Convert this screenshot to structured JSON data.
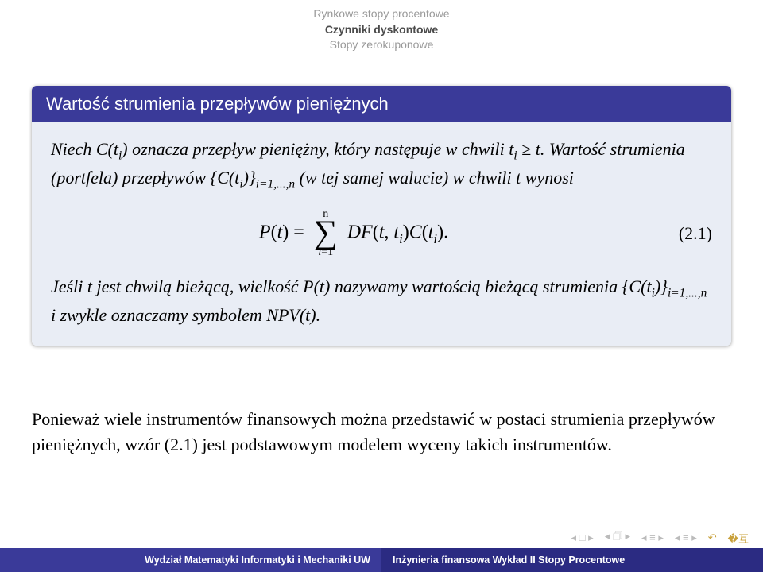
{
  "nav": {
    "line1": "Rynkowe stopy procentowe",
    "line2": "Czynniki dyskontowe",
    "line3": "Stopy zerokuponowe"
  },
  "block": {
    "title": "Wartość strumienia przepływów pieniężnych",
    "intro_html": "Niech <i>C</i>(<i>t<sub>i</sub></i>) oznacza przepływ pieniężny, który następuje w chwili <i>t<sub>i</sub></i> ≥ <i>t</i>. Wartość strumienia (portfela) przepływów {<i>C</i>(<i>t<sub>i</sub></i>)}<sub><i>i</i>=1,...,<i>n</i></sub> (w tej samej walucie) w chwili <i>t</i> wynosi",
    "eq_lhs": "P(t) =",
    "eq_sum_top": "n",
    "eq_sum_bot": "i=1",
    "eq_rhs_html": "<i>DF</i>(<i>t</i>, <i>t<sub>i</sub></i>)<i>C</i>(<i>t<sub>i</sub></i>).",
    "eq_num": "(2.1)",
    "after_html": "Jeśli <i>t</i> jest chwilą bieżącą, wielkość <i>P</i>(<i>t</i>) nazywamy wartością bieżącą strumienia {<i>C</i>(<i>t<sub>i</sub></i>)}<sub><i>i</i>=1,...,<i>n</i></sub> i zwykle oznaczamy symbolem <i>NPV</i>(<i>t</i>)."
  },
  "under_html": "Ponieważ wiele instrumentów finansowych można przedstawić w postaci strumienia przepływów pieniężnych, wzór (2.1) jest podstawowym modelem wyceny takich instrumentów.",
  "footer": {
    "left": "Wydział Matematyki Informatyki i Mechaniki UW",
    "right": "Inżynieria finansowa  Wykład II Stopy Procentowe"
  },
  "colors": {
    "beamer_blue": "#3a3a99",
    "beamer_dark": "#2b2b82",
    "block_bg": "#e9edf5",
    "nav_dim": "#999999",
    "nav_active": "#4b4b4b",
    "icon": "#bbbbbb"
  }
}
